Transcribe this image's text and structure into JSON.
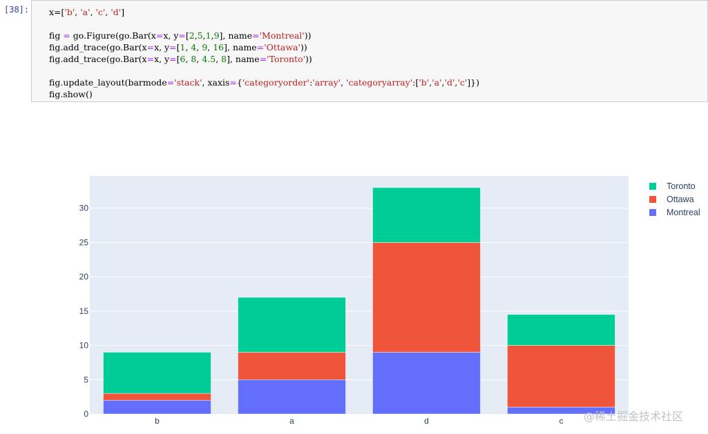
{
  "notebook": {
    "prompt": "[38]:",
    "code_lines": [
      "x=['b', 'a', 'c', 'd']",
      "",
      "fig = go.Figure(go.Bar(x=x, y=[2,5,1,9], name='Montreal'))",
      "fig.add_trace(go.Bar(x=x, y=[1, 4, 9, 16], name='Ottawa'))",
      "fig.add_trace(go.Bar(x=x, y=[6, 8, 4.5, 8], name='Toronto'))",
      "",
      "fig.update_layout(barmode='stack', xaxis={'categoryorder':'array', 'categoryarray':['b','a','d','c']})",
      "fig.show()"
    ]
  },
  "chart_data": {
    "type": "bar",
    "barmode": "stack",
    "categories": [
      "b",
      "a",
      "d",
      "c"
    ],
    "series": [
      {
        "name": "Montreal",
        "values": [
          2,
          5,
          9,
          1
        ],
        "color": "#636efa"
      },
      {
        "name": "Ottawa",
        "values": [
          1,
          4,
          16,
          9
        ],
        "color": "#ef553b"
      },
      {
        "name": "Toronto",
        "values": [
          6,
          8,
          8,
          4.5
        ],
        "color": "#00cc96"
      }
    ],
    "yticks": [
      0,
      5,
      10,
      15,
      20,
      25,
      30
    ],
    "ylim": [
      0,
      34.7
    ],
    "grid": true,
    "legend_position": "top-right",
    "plot_background": "#e5ecf6",
    "axis_text_color": "#2a3f5f"
  },
  "legend": [
    {
      "label": "Toronto",
      "color": "#00cc96"
    },
    {
      "label": "Ottawa",
      "color": "#ef553b"
    },
    {
      "label": "Montreal",
      "color": "#636efa"
    }
  ],
  "watermark": "@稀土掘金技术社区"
}
